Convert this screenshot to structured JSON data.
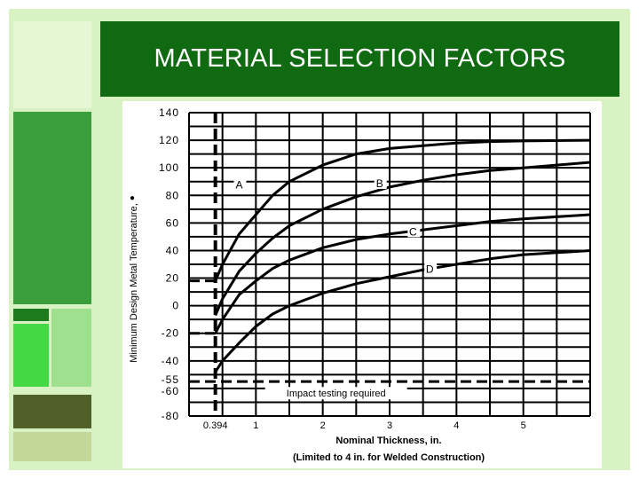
{
  "slide": {
    "title": "MATERIAL SELECTION FACTORS",
    "colors": {
      "background": "#d9f2c4",
      "title_bar": "#0f6a12",
      "block_mid_green": "#3a9e3a",
      "block_light_green": "#9fe08f",
      "block_bright_green": "#45d845",
      "block_olive": "#4f6128",
      "block_pale_olive": "#c4d79b"
    }
  },
  "chart_data": {
    "type": "line",
    "xlabel": "Nominal Thickness, in.",
    "xlabel_note": "(Limited to 4 in. for Welded Construction)",
    "ylabel": "Minimum Design Metal Temperature,",
    "ylabel_mark": "●",
    "x_ticks": [
      {
        "label": "0.394",
        "value": 0.394
      },
      {
        "label": "1",
        "value": 1
      },
      {
        "label": "2",
        "value": 2
      },
      {
        "label": "3",
        "value": 3
      },
      {
        "label": "4",
        "value": 4
      },
      {
        "label": "5",
        "value": 5
      }
    ],
    "y_ticks": [
      {
        "label": "140",
        "value": 140
      },
      {
        "label": "120",
        "value": 120
      },
      {
        "label": "100",
        "value": 100
      },
      {
        "label": "80",
        "value": 80
      },
      {
        "label": "60",
        "value": 60
      },
      {
        "label": "40",
        "value": 40
      },
      {
        "label": "20",
        "value": 20
      },
      {
        "label": "0",
        "value": 0
      },
      {
        "label": "-20",
        "value": -20
      },
      {
        "label": "-40",
        "value": -40
      },
      {
        "label": "-55",
        "value": -55
      },
      {
        "label": "-60",
        "value": -60
      },
      {
        "label": "-80",
        "value": -80
      }
    ],
    "xlim": [
      0,
      6
    ],
    "ylim": [
      -80,
      140
    ],
    "grid": true,
    "series": [
      {
        "name": "A",
        "x": [
          0.394,
          0.5,
          0.75,
          1.0,
          1.25,
          1.5,
          2.0,
          2.5,
          3.0,
          3.5,
          4.0,
          4.5,
          5.0,
          6.0
        ],
        "y": [
          18,
          30,
          52,
          66,
          80,
          90,
          102,
          110,
          114,
          116,
          118,
          119,
          119.5,
          120
        ]
      },
      {
        "name": "B",
        "x": [
          0.394,
          0.5,
          0.75,
          1.0,
          1.25,
          1.5,
          2.0,
          2.5,
          3.0,
          3.5,
          4.0,
          4.5,
          5.0,
          6.0
        ],
        "y": [
          -7,
          5,
          25,
          38,
          49,
          58,
          70,
          79,
          86,
          91,
          95,
          98,
          100,
          104
        ]
      },
      {
        "name": "C",
        "x": [
          0.394,
          0.5,
          0.75,
          1.0,
          1.25,
          1.5,
          2.0,
          2.5,
          3.0,
          3.5,
          4.0,
          4.5,
          5.0,
          6.0
        ],
        "y": [
          -20,
          -10,
          8,
          18,
          27,
          33,
          42,
          48,
          52,
          55,
          58,
          61,
          63,
          66
        ]
      },
      {
        "name": "D",
        "x": [
          0.394,
          0.5,
          0.75,
          1.0,
          1.25,
          1.5,
          2.0,
          2.5,
          3.0,
          3.5,
          4.0,
          4.5,
          5.0,
          6.0
        ],
        "y": [
          -48,
          -40,
          -27,
          -15,
          -6,
          0,
          9,
          16,
          21,
          26,
          30,
          34,
          37,
          40
        ]
      }
    ],
    "series_label_anchor": [
      {
        "name": "A",
        "x": 0.75,
        "y": 85
      },
      {
        "name": "B",
        "x": 2.85,
        "y": 86
      },
      {
        "name": "C",
        "x": 3.35,
        "y": 51
      },
      {
        "name": "D",
        "x": 3.6,
        "y": 24
      }
    ],
    "reference_lines": [
      {
        "orientation": "vertical",
        "x": 0.394,
        "style": "dashed"
      },
      {
        "orientation": "horizontal",
        "y": -55,
        "style": "dashed"
      },
      {
        "orientation": "horizontal",
        "y": 18,
        "x_end": 0.394,
        "style": "dashed"
      },
      {
        "orientation": "horizontal",
        "y": -20,
        "x_end": 0.394,
        "style": "dashed"
      }
    ],
    "annotations": [
      {
        "text": "Impact testing required",
        "x": 2.2,
        "y": -66
      }
    ]
  }
}
